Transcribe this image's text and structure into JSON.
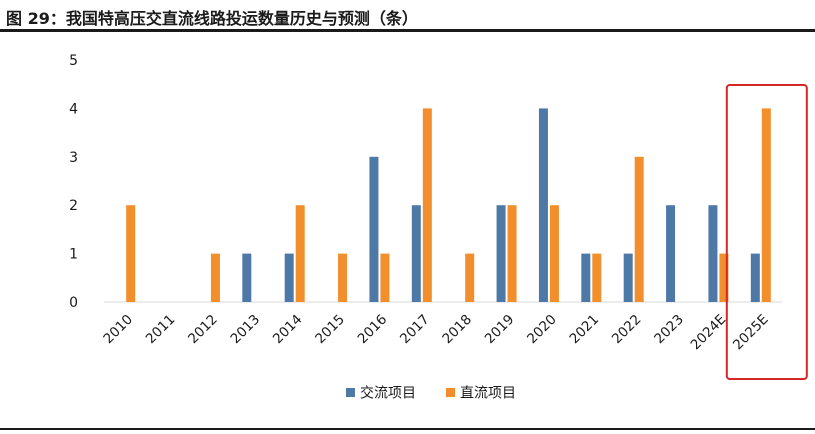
{
  "figure_title": "图 29：我国特高压交直流线路投运数量历史与预测（条）",
  "colors": {
    "ac": "#4E79A7",
    "dc": "#F28E2B",
    "highlight": "#D62728",
    "axis": "#D9D9D9",
    "text": "#1a1a1a"
  },
  "chart_data": {
    "type": "bar",
    "title": "我国特高压交直流线路投运数量历史与预测（条）",
    "xlabel": "",
    "ylabel": "",
    "ylim": [
      0,
      5
    ],
    "yticks": [
      "0",
      "1",
      "2",
      "3",
      "4",
      "5"
    ],
    "grid": false,
    "legend_position": "bottom-center",
    "categories": [
      "2010",
      "2011",
      "2012",
      "2013",
      "2014",
      "2015",
      "2016",
      "2017",
      "2018",
      "2019",
      "2020",
      "2021",
      "2022",
      "2023",
      "2024E",
      "2025E"
    ],
    "series": [
      {
        "name": "交流项目",
        "values": [
          0,
          0,
          0,
          1,
          1,
          0,
          3,
          2,
          0,
          2,
          4,
          1,
          1,
          2,
          2,
          1
        ]
      },
      {
        "name": "直流项目",
        "values": [
          2,
          0,
          1,
          0,
          2,
          1,
          1,
          4,
          1,
          2,
          2,
          1,
          3,
          0,
          1,
          4
        ]
      }
    ],
    "highlighted_category": "2025E"
  }
}
